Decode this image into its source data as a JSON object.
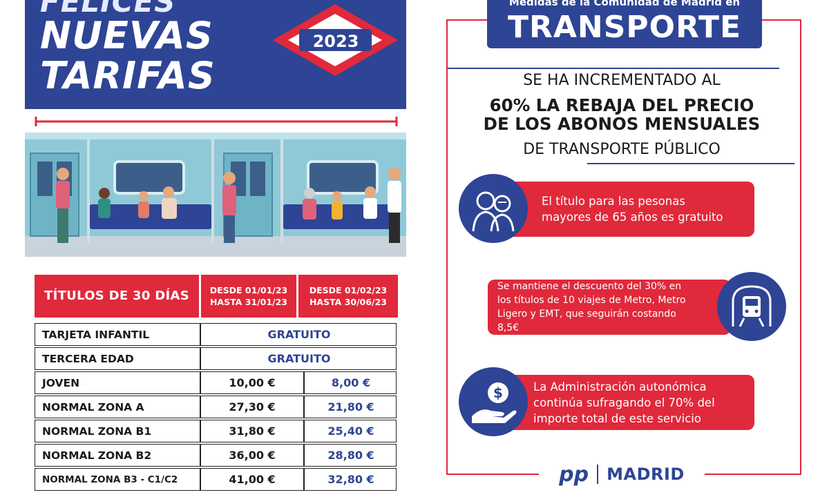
{
  "header": {
    "line1": "FELICES",
    "line2": "NUEVAS",
    "line3": "TARIFAS",
    "year": "2023"
  },
  "table": {
    "head_main": "TÍTULOS DE 30 DÍAS",
    "head_d1_line1": "DESDE 01/01/23",
    "head_d1_line2": "HASTA 31/01/23",
    "head_d2_line1": "DESDE 01/02/23",
    "head_d2_line2": "HASTA 30/06/23",
    "rows": [
      {
        "label": "TARJETA INFANTIL",
        "span": "GRATUITO"
      },
      {
        "label": "TERCERA EDAD",
        "span": "GRATUITO"
      },
      {
        "label": "JOVEN",
        "p1": "10,00 €",
        "p2": "8,00 €"
      },
      {
        "label": "NORMAL ZONA A",
        "p1": "27,30 €",
        "p2": "21,80 €"
      },
      {
        "label": "NORMAL ZONA B1",
        "p1": "31,80 €",
        "p2": "25,40 €"
      },
      {
        "label": "NORMAL ZONA B2",
        "p1": "36,00 €",
        "p2": "28,80 €"
      },
      {
        "label": "NORMAL ZONA B3 - C1/C2",
        "p1": "41,00 €",
        "p2": "32,80 €"
      }
    ]
  },
  "right": {
    "title_small": "Medidas de la Comunidad de Madrid en",
    "title_big": "TRANSPORTE",
    "lead_1": "SE HA INCREMENTADO AL",
    "lead_2": "60% LA REBAJA DEL PRECIO",
    "lead_3": "DE LOS ABONOS MENSUALES",
    "lead_4": "DE TRANSPORTE PÚBLICO",
    "item_1_line1": "El título para las pesonas",
    "item_1_line2": "mayores de 65 años es gratuito",
    "item_2_line1": "Se mantiene el descuento del 30% en",
    "item_2_line2": "los títulos de 10 viajes de Metro, Metro",
    "item_2_line3": "Ligero y EMT, que seguirán costando 8,5€",
    "item_3_line1": "La Administración autonómica",
    "item_3_line2": "continúa sufragando el 70% del",
    "item_3_line3": "importe total de este servicio",
    "footer_pp": "pp",
    "footer_madrid": "MADRID"
  },
  "colors": {
    "navy": "#2e4495",
    "red": "#e0293b"
  },
  "icons": [
    "metro-diamond-logo",
    "seniors-icon",
    "metro-train-icon",
    "money-hand-icon"
  ]
}
